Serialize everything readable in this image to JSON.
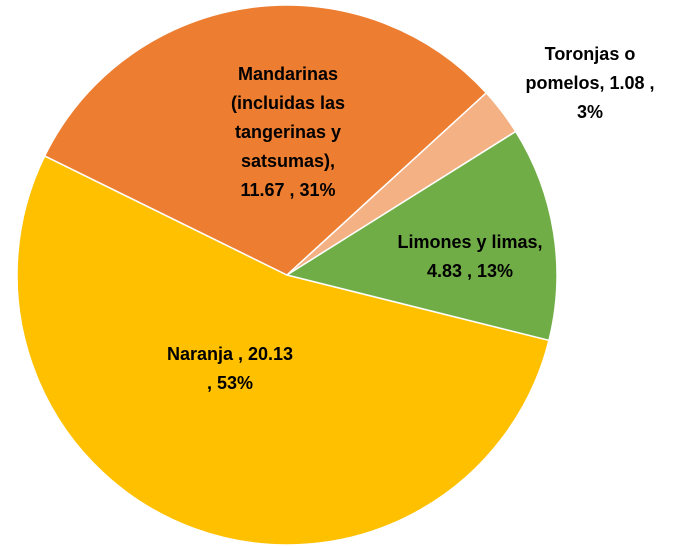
{
  "chart_data": {
    "type": "pie",
    "values": [
      20.13,
      11.67,
      1.08,
      4.83
    ],
    "percents": [
      53,
      31,
      3,
      13
    ],
    "value_labels": [
      "Naranja ,  20.13\n, 53%",
      "Mandarinas\n(incluidas las\ntangerinas y\nsatsumas),\n11.67 , 31%",
      "Toronjas o\npomelos,  1.08 ,\n3%",
      "Limones y limas,\n4.83 , 13%"
    ],
    "colors": [
      "#ffc000",
      "#ed7d31",
      "#f4b183",
      "#70ad47"
    ]
  }
}
